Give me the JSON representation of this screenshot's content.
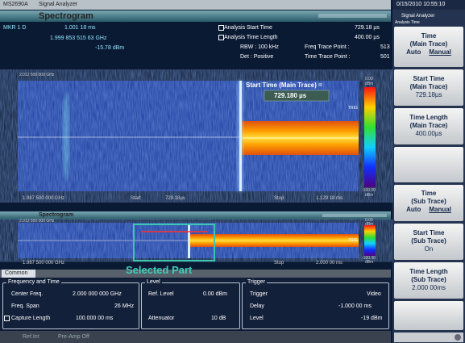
{
  "header": {
    "model": "MS2690A",
    "app": "Signal Analyzer",
    "datetime": "0/15/2010 10:55:10"
  },
  "spectrogram": {
    "title": "Spectrogram",
    "marker": {
      "label": "MKR 1 D",
      "time": "1.001 18 ms",
      "freq": "1.999 853 515 63 GHz",
      "level": "-15.78 dBm"
    },
    "info": {
      "start_label": "Analysis Start Time",
      "start_value": "729.18 µs",
      "length_label": "Analysis Time Length",
      "length_value": "400.00 µs",
      "rbw": "RBW : 100 kHz",
      "freq_points_label": "Freq Trace Point :",
      "freq_points": "513",
      "det": "Det : Positive",
      "time_points_label": "Time Trace Point :",
      "time_points": "501"
    },
    "freq_top": "2.012 500 000 GHz",
    "freq_bottom": "1.987 500 000 GHz",
    "start_label": "Start",
    "start_value": "729.18µs",
    "stop_label": "Stop",
    "stop_value": "1.129 18 ms",
    "callout_label": "Start Time (Main Trace) =",
    "callout_value": "729.180 µs",
    "scale_top": "0.00",
    "scale_top_unit": "dBm",
    "scale_bottom": "-100.00",
    "scale_bottom_unit": "dBm",
    "trig": "TRIG"
  },
  "sub": {
    "title": "Spectrogram",
    "freq_top": "2.012 500 000 GHz",
    "freq_bottom": "1.987 500 000 GHz",
    "trig": "TRIG",
    "scale_top": "0.00",
    "scale_top_unit": "dBm",
    "scale_bottom": "-100.00",
    "scale_bottom_unit": "dBm",
    "stop_label": "Stop",
    "stop_value": "2.000 00 ms",
    "annotation": "Selected Part"
  },
  "common": {
    "tab": "Common",
    "freq_time": {
      "title": "Frequency and Time",
      "center_label": "Center Freq.",
      "center_value": "2.000 000 000 GHz",
      "span_label": "Freq. Span",
      "span_value": "26 MHz",
      "capture_label": "Capture Length",
      "capture_value": "100.000 00 ms"
    },
    "level": {
      "title": "Level",
      "ref_label": "Ref. Level",
      "ref_value": "0.00 dBm",
      "att_label": "Attenuator",
      "att_value": "10 dB"
    },
    "trigger": {
      "title": "Trigger",
      "trigger_label": "Trigger",
      "trigger_value": "Video",
      "delay_label": "Delay",
      "delay_value": "-1.000 00 ms",
      "level_label": "Level",
      "level_value": "-19 dBm"
    }
  },
  "status": {
    "ref": "Ref.Int",
    "preamp": "Pre-Amp Off"
  },
  "side": {
    "app": "Signal Analyzer",
    "menu": "Analysis Time",
    "keys": [
      {
        "line1": "Time",
        "line2": "(Main Trace)",
        "opt1": "Auto",
        "opt2": "Manual"
      },
      {
        "line1": "Start Time",
        "line2": "(Main Trace)",
        "value": "729.18µs"
      },
      {
        "line1": "Time Length",
        "line2": "(Main Trace)",
        "value": "400.00µs"
      },
      {
        "line1": "Time",
        "line2": "(Sub Trace)",
        "opt1": "Auto",
        "opt2": "Manual"
      },
      {
        "line1": "Start Time",
        "line2": "(Sub Trace)",
        "value": "On"
      },
      {
        "line1": "Time Length",
        "line2": "(Sub Trace)",
        "value": "2.000 00ms"
      }
    ]
  }
}
